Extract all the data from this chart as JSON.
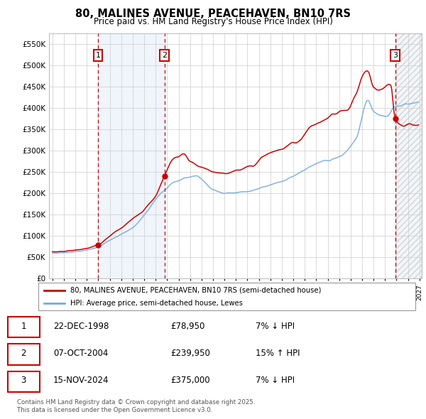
{
  "title": "80, MALINES AVENUE, PEACEHAVEN, BN10 7RS",
  "subtitle": "Price paid vs. HM Land Registry's House Price Index (HPI)",
  "ylim": [
    0,
    575000
  ],
  "yticks": [
    0,
    50000,
    100000,
    150000,
    200000,
    250000,
    300000,
    350000,
    400000,
    450000,
    500000,
    550000
  ],
  "ytick_labels": [
    "£0",
    "£50K",
    "£100K",
    "£150K",
    "£200K",
    "£250K",
    "£300K",
    "£350K",
    "£400K",
    "£450K",
    "£500K",
    "£550K"
  ],
  "sale1_date": 1998.97,
  "sale1_price": 78950,
  "sale1_label": "1",
  "sale2_date": 2004.77,
  "sale2_price": 239950,
  "sale2_label": "2",
  "sale3_date": 2024.88,
  "sale3_price": 375000,
  "sale3_label": "3",
  "line1_color": "#cc0000",
  "line2_color": "#7aaadd",
  "legend1": "80, MALINES AVENUE, PEACEHAVEN, BN10 7RS (semi-detached house)",
  "legend2": "HPI: Average price, semi-detached house, Lewes",
  "table_data": [
    {
      "num": "1",
      "date": "22-DEC-1998",
      "price": "£78,950",
      "change": "7% ↓ HPI"
    },
    {
      "num": "2",
      "date": "07-OCT-2004",
      "price": "£239,950",
      "change": "15% ↑ HPI"
    },
    {
      "num": "3",
      "date": "15-NOV-2024",
      "price": "£375,000",
      "change": "7% ↓ HPI"
    }
  ],
  "footer": "Contains HM Land Registry data © Crown copyright and database right 2025.\nThis data is licensed under the Open Government Licence v3.0.",
  "sale1_x": 1998.97,
  "sale2_x": 2004.77,
  "sale3_x": 2024.88
}
